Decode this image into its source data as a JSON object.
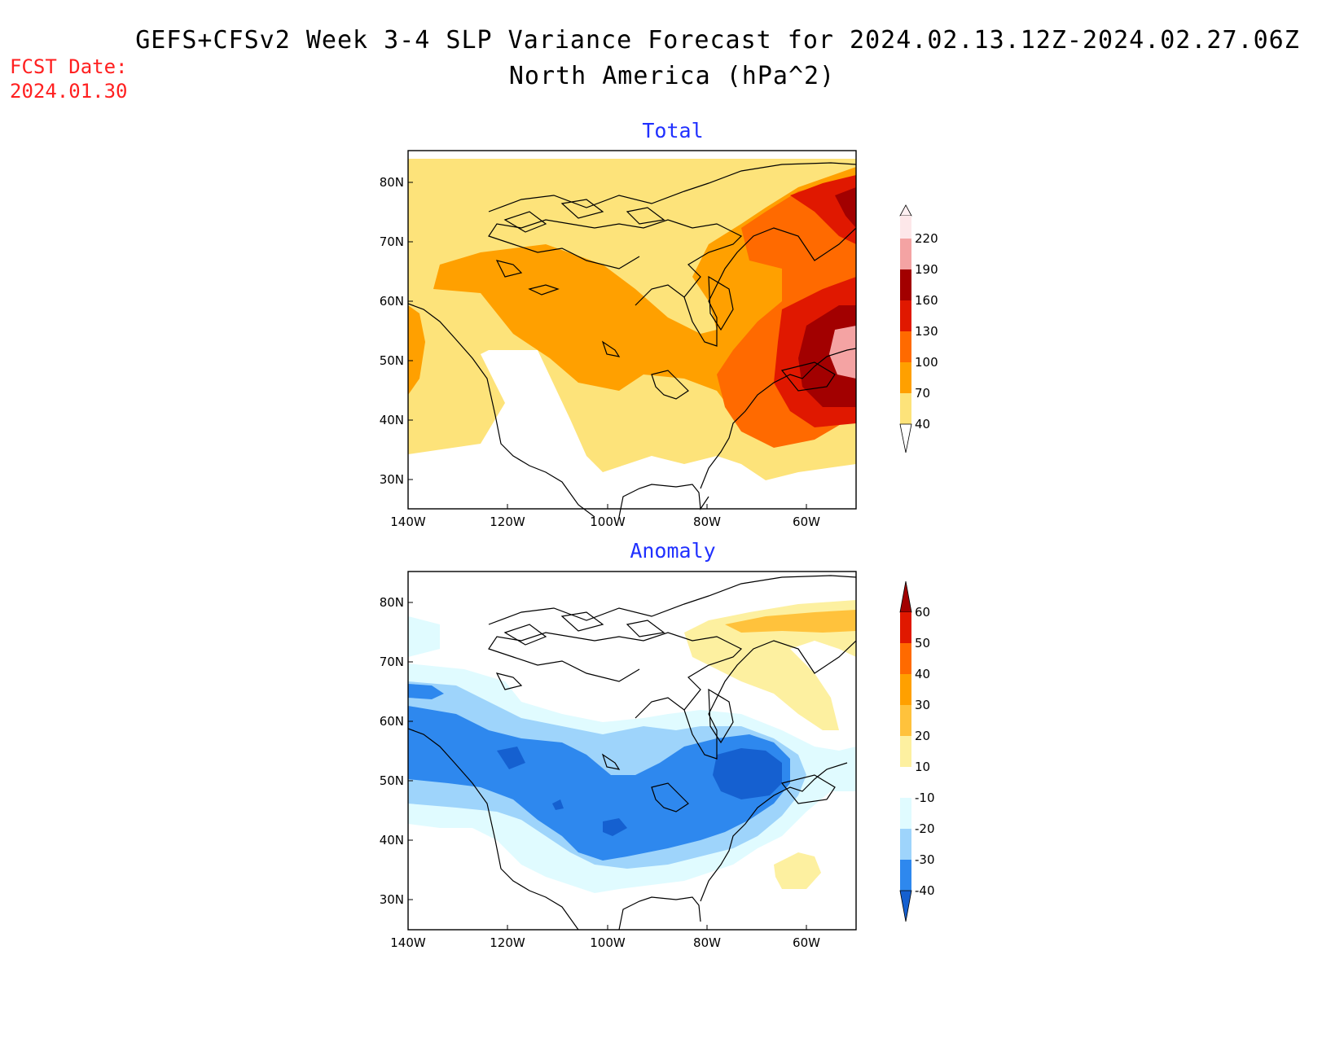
{
  "header": {
    "title_line1": "GEFS+CFSv2 Week 3-4 SLP Variance Forecast for 2024.02.13.12Z-2024.02.27.06Z",
    "title_line2": "North America (hPa^2)",
    "fcst_label": "FCST Date:",
    "fcst_date": "2024.01.30"
  },
  "panels": [
    {
      "title": "Total",
      "lat_labels": [
        "80N",
        "70N",
        "60N",
        "50N",
        "40N",
        "30N"
      ],
      "lon_labels": [
        "140W",
        "120W",
        "100W",
        "80W",
        "60W"
      ],
      "colorbar": {
        "labels": [
          "220",
          "190",
          "160",
          "130",
          "100",
          "70",
          "40"
        ],
        "colors": [
          "#fde7e9",
          "#f4a3a3",
          "#a20000",
          "#e01800",
          "#ff6a00",
          "#ffa000",
          "#fde37a"
        ]
      }
    },
    {
      "title": "Anomaly",
      "lat_labels": [
        "80N",
        "70N",
        "60N",
        "50N",
        "40N",
        "30N"
      ],
      "lon_labels": [
        "140W",
        "120W",
        "100W",
        "80W",
        "60W"
      ],
      "colorbar": {
        "labels": [
          "60",
          "50",
          "40",
          "30",
          "20",
          "10",
          "-10",
          "-20",
          "-30",
          "-40"
        ],
        "colors": [
          "#a20000",
          "#e01800",
          "#ff6a00",
          "#ffa000",
          "#ffc23c",
          "#fdf0a0",
          "#ffffff",
          "#e0fbff",
          "#9ed4fb",
          "#2e88ee",
          "#1560d0"
        ]
      }
    }
  ],
  "colors": {
    "title_blue": "#2030ff",
    "fcst_red": "#ff2020"
  }
}
